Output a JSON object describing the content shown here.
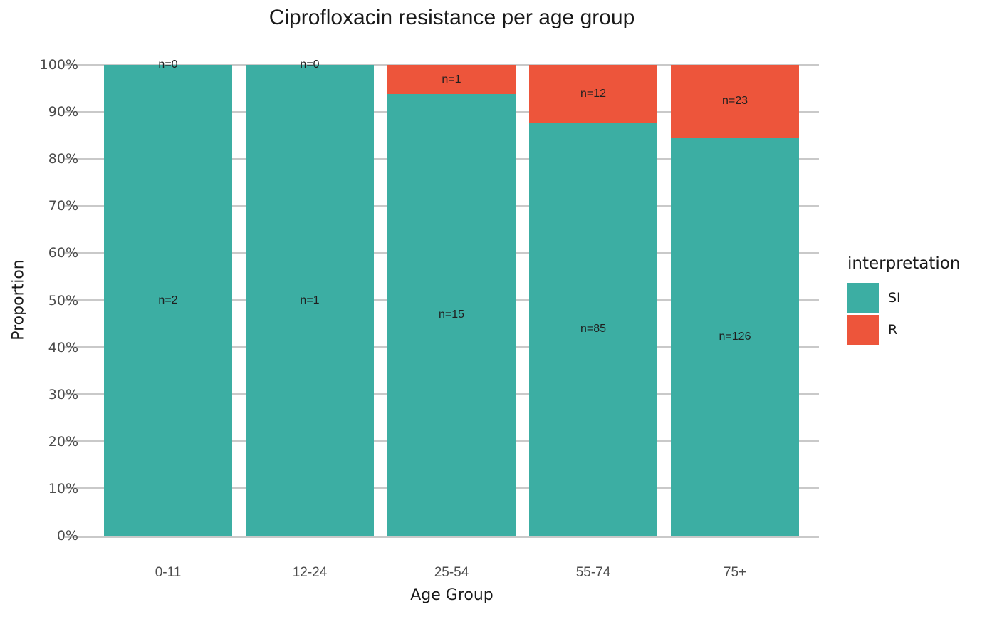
{
  "title": "Ciprofloxacin resistance per age group",
  "chart_data": {
    "type": "bar",
    "subtype": "stacked-percent",
    "title": "Ciprofloxacin resistance per age group",
    "xlabel": "Age Group",
    "ylabel": "Proportion",
    "categories": [
      "0-11",
      "12-24",
      "25-54",
      "55-74",
      "75+"
    ],
    "series": [
      {
        "name": "SI",
        "color": "#3CAEA3",
        "position": "bottom",
        "values": [
          2,
          1,
          15,
          85,
          126
        ]
      },
      {
        "name": "R",
        "color": "#ED553B",
        "position": "top",
        "values": [
          0,
          0,
          1,
          12,
          23
        ]
      }
    ],
    "percent_R_per_category": [
      0,
      0,
      6.25,
      12.37,
      15.44
    ],
    "bar_labels": {
      "R": [
        "n=0",
        "n=0",
        "n=1",
        "n=12",
        "n=23"
      ],
      "SI": [
        "n=2",
        "n=1",
        "n=15",
        "n=85",
        "n=126"
      ]
    },
    "ylim": [
      0,
      100
    ],
    "yticks": [
      0,
      10,
      20,
      30,
      40,
      50,
      60,
      70,
      80,
      90,
      100
    ],
    "ytick_suffix": "%",
    "grid": "horizontal",
    "legend": {
      "title": "interpretation",
      "position": "right",
      "items": [
        {
          "label": "SI",
          "color": "#3CAEA3"
        },
        {
          "label": "R",
          "color": "#ED553B"
        }
      ]
    }
  },
  "colors": {
    "si": "#3CAEA3",
    "r": "#ED553B",
    "gridline": "#C9C9C9",
    "axis_text": "#4D4D4D",
    "text": "#1A1A1A",
    "background": "#FFFFFF"
  }
}
